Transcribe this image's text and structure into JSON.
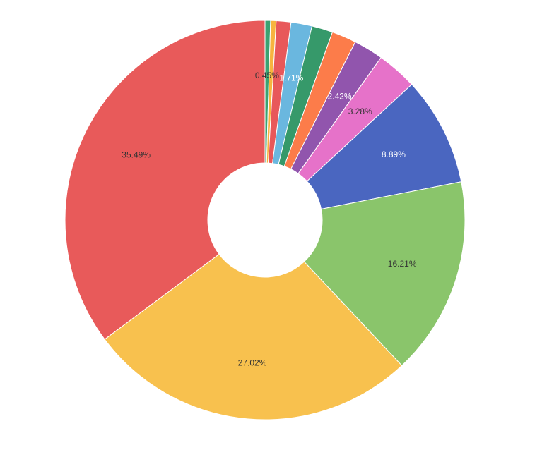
{
  "chart_data": {
    "type": "pie",
    "variant": "donut",
    "title": "",
    "start": "top",
    "direction": "clockwise",
    "slices": [
      {
        "value": 0.45,
        "label": "0.45%",
        "color": "#3ba272",
        "show_label": true,
        "label_color": "#333333"
      },
      {
        "value": 0.45,
        "label": "",
        "color": "#f7b43f",
        "show_label": false
      },
      {
        "value": 1.2,
        "label": "",
        "color": "#e8585a",
        "show_label": false
      },
      {
        "value": 1.71,
        "label": "1.71%",
        "color": "#6ab7df",
        "show_label": true,
        "label_color": "#ffffff"
      },
      {
        "value": 1.71,
        "label": "",
        "color": "#36996a",
        "show_label": false
      },
      {
        "value": 2.0,
        "label": "",
        "color": "#fc7c4a",
        "show_label": false
      },
      {
        "value": 2.42,
        "label": "2.42%",
        "color": "#9155ad",
        "show_label": true,
        "label_color": "#ffffff"
      },
      {
        "value": 3.28,
        "label": "3.28%",
        "color": "#e672c9",
        "show_label": true,
        "label_color": "#333333"
      },
      {
        "value": 8.89,
        "label": "8.89%",
        "color": "#4a66c0",
        "show_label": true,
        "label_color": "#ffffff"
      },
      {
        "value": 16.21,
        "label": "16.21%",
        "color": "#8ac56b",
        "show_label": true,
        "label_color": "#333333"
      },
      {
        "value": 27.02,
        "label": "27.02%",
        "color": "#f8c14e",
        "show_label": true,
        "label_color": "#333333"
      },
      {
        "value": 35.49,
        "label": "35.49%",
        "color": "#e85a5a",
        "show_label": true,
        "label_color": "#333333"
      }
    ]
  }
}
